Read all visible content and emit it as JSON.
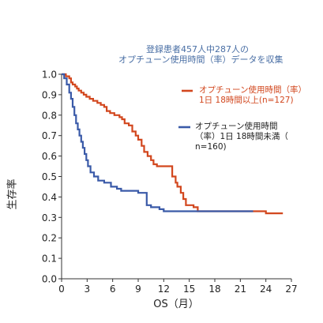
{
  "chart_data": {
    "type": "line",
    "step": true,
    "title_lines": [
      "登録患者457人中287人の",
      "オプチューン使用時間（率）データを収集"
    ],
    "xlabel": "OS（月）",
    "ylabel": "生存率",
    "xlim": [
      0,
      27
    ],
    "ylim": [
      0,
      1
    ],
    "x_ticks": [
      0,
      3,
      6,
      9,
      12,
      15,
      18,
      21,
      24,
      27
    ],
    "y_ticks": [
      0.0,
      0.1,
      0.2,
      0.3,
      0.4,
      0.5,
      0.6,
      0.7,
      0.8,
      0.9,
      1.0
    ],
    "y_tick_labels": [
      "0.0",
      "0.1",
      "0.2",
      "0.3",
      "0.4",
      "0.5",
      "0.6",
      "0.7",
      "0.8",
      "0.9",
      "1.0"
    ],
    "grid": false,
    "legend_position": "right",
    "series": [
      {
        "legend_lines": [
          "オプチューン使用時間（率）",
          "1日 18時間以上(n=127)"
        ],
        "color": "#d2471e",
        "points": [
          [
            0,
            1.0
          ],
          [
            0.5,
            0.99
          ],
          [
            0.9,
            0.98
          ],
          [
            1.1,
            0.96
          ],
          [
            1.3,
            0.95
          ],
          [
            1.6,
            0.94
          ],
          [
            1.8,
            0.93
          ],
          [
            2.0,
            0.92
          ],
          [
            2.3,
            0.91
          ],
          [
            2.6,
            0.9
          ],
          [
            2.9,
            0.89
          ],
          [
            3.3,
            0.88
          ],
          [
            3.7,
            0.87
          ],
          [
            4.2,
            0.86
          ],
          [
            4.6,
            0.85
          ],
          [
            5.0,
            0.84
          ],
          [
            5.3,
            0.82
          ],
          [
            5.7,
            0.81
          ],
          [
            6.2,
            0.8
          ],
          [
            6.8,
            0.79
          ],
          [
            7.1,
            0.78
          ],
          [
            7.4,
            0.76
          ],
          [
            7.9,
            0.75
          ],
          [
            8.3,
            0.72
          ],
          [
            8.7,
            0.7
          ],
          [
            9.0,
            0.68
          ],
          [
            9.4,
            0.65
          ],
          [
            9.7,
            0.62
          ],
          [
            10.1,
            0.6
          ],
          [
            10.5,
            0.58
          ],
          [
            10.8,
            0.56
          ],
          [
            11.2,
            0.55
          ],
          [
            12.0,
            0.55
          ],
          [
            12.8,
            0.55
          ],
          [
            13.0,
            0.5
          ],
          [
            13.4,
            0.47
          ],
          [
            13.6,
            0.45
          ],
          [
            14.0,
            0.42
          ],
          [
            14.3,
            0.39
          ],
          [
            14.6,
            0.36
          ],
          [
            15.5,
            0.35
          ],
          [
            16.0,
            0.33
          ],
          [
            20.0,
            0.33
          ],
          [
            24.0,
            0.32
          ],
          [
            26.0,
            0.32
          ]
        ]
      },
      {
        "legend_lines": [
          "オプチューン使用時間",
          "（率）1日 18時間未満（",
          "n=160)"
        ],
        "color": "#3a5aa8",
        "points": [
          [
            0,
            1.0
          ],
          [
            0.3,
            0.98
          ],
          [
            0.6,
            0.95
          ],
          [
            0.9,
            0.91
          ],
          [
            1.1,
            0.88
          ],
          [
            1.3,
            0.84
          ],
          [
            1.5,
            0.8
          ],
          [
            1.7,
            0.76
          ],
          [
            1.9,
            0.73
          ],
          [
            2.1,
            0.7
          ],
          [
            2.3,
            0.67
          ],
          [
            2.5,
            0.64
          ],
          [
            2.7,
            0.61
          ],
          [
            2.9,
            0.58
          ],
          [
            3.1,
            0.55
          ],
          [
            3.4,
            0.52
          ],
          [
            3.8,
            0.5
          ],
          [
            4.3,
            0.48
          ],
          [
            5.0,
            0.47
          ],
          [
            5.8,
            0.45
          ],
          [
            6.5,
            0.44
          ],
          [
            7.0,
            0.43
          ],
          [
            8.5,
            0.43
          ],
          [
            9.0,
            0.42
          ],
          [
            10.0,
            0.36
          ],
          [
            10.5,
            0.35
          ],
          [
            11.5,
            0.34
          ],
          [
            12.0,
            0.33
          ],
          [
            15.0,
            0.33
          ],
          [
            18.0,
            0.33
          ],
          [
            22.5,
            0.33
          ]
        ]
      }
    ]
  }
}
